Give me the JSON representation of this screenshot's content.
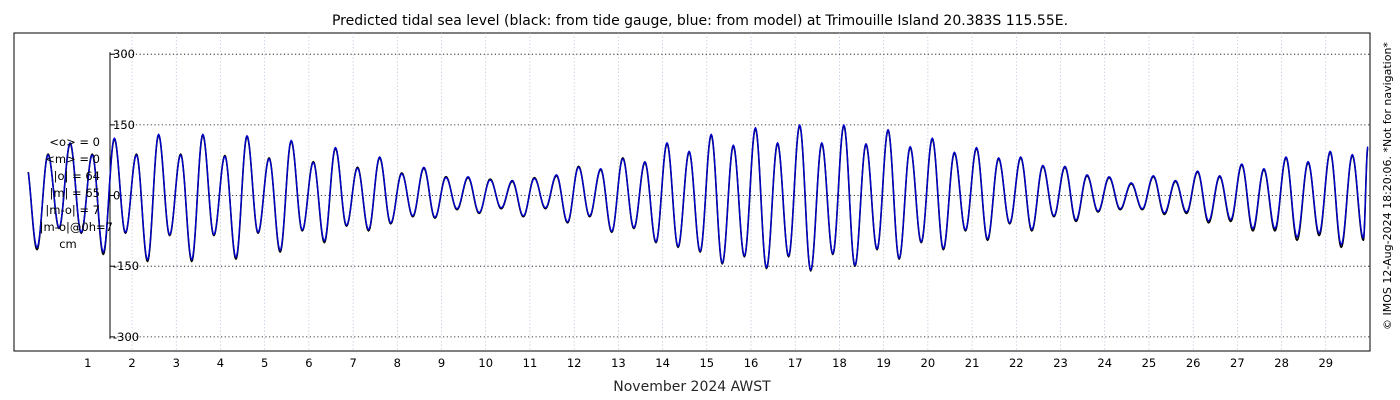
{
  "chart_data": {
    "type": "line",
    "title": "Predicted tidal sea level (black: from tide gauge, blue: from model) at Trimouille Island 20.383S 115.55E.",
    "xlabel": "November 2024 AWST",
    "ylabel": "",
    "unit": "cm",
    "ylim": [
      -330,
      345
    ],
    "yticks": [
      300,
      150,
      0,
      -150,
      -300
    ],
    "ytick_labels": [
      "300",
      "150",
      "0",
      "-150",
      "-300"
    ],
    "xlim": [
      -0.67,
      30
    ],
    "xticks": [
      1,
      2,
      3,
      4,
      5,
      6,
      7,
      8,
      9,
      10,
      11,
      12,
      13,
      14,
      15,
      16,
      17,
      18,
      19,
      20,
      21,
      22,
      23,
      24,
      25,
      26,
      27,
      28,
      29
    ],
    "xtick_labels": [
      "1",
      "2",
      "3",
      "4",
      "5",
      "6",
      "7",
      "8",
      "9",
      "10",
      "11",
      "12",
      "13",
      "14",
      "15",
      "16",
      "17",
      "18",
      "19",
      "20",
      "21",
      "22",
      "23",
      "24",
      "25",
      "26",
      "27",
      "28",
      "29"
    ],
    "grid": true,
    "x_start": -0.35,
    "x_end": 29.95,
    "series": [
      {
        "name": "black: from tide gauge",
        "color": "#000000",
        "high_tide_peaks": [
          [
            -0.4,
            70
          ],
          [
            0.1,
            88
          ],
          [
            0.6,
            110
          ],
          [
            1.1,
            88
          ],
          [
            1.6,
            120
          ],
          [
            2.1,
            88
          ],
          [
            2.6,
            128
          ],
          [
            3.1,
            88
          ],
          [
            3.6,
            128
          ],
          [
            4.1,
            85
          ],
          [
            4.6,
            125
          ],
          [
            5.1,
            80
          ],
          [
            5.6,
            115
          ],
          [
            6.1,
            72
          ],
          [
            6.6,
            100
          ],
          [
            7.1,
            60
          ],
          [
            7.6,
            80
          ],
          [
            8.1,
            48
          ],
          [
            8.6,
            58
          ],
          [
            9.1,
            40
          ],
          [
            9.6,
            38
          ],
          [
            10.1,
            35
          ],
          [
            10.6,
            30
          ],
          [
            11.1,
            38
          ],
          [
            11.6,
            42
          ],
          [
            12.1,
            62
          ],
          [
            12.6,
            55
          ],
          [
            13.1,
            80
          ],
          [
            13.6,
            70
          ],
          [
            14.1,
            110
          ],
          [
            14.6,
            92
          ],
          [
            15.1,
            128
          ],
          [
            15.6,
            105
          ],
          [
            16.1,
            142
          ],
          [
            16.6,
            110
          ],
          [
            17.1,
            148
          ],
          [
            17.6,
            110
          ],
          [
            18.1,
            148
          ],
          [
            18.6,
            108
          ],
          [
            19.1,
            138
          ],
          [
            19.6,
            102
          ],
          [
            20.1,
            120
          ],
          [
            20.6,
            90
          ],
          [
            21.1,
            100
          ],
          [
            21.6,
            78
          ],
          [
            22.1,
            80
          ],
          [
            22.6,
            62
          ],
          [
            23.1,
            60
          ],
          [
            23.6,
            42
          ],
          [
            24.1,
            38
          ],
          [
            24.6,
            25
          ],
          [
            25.1,
            40
          ],
          [
            25.6,
            30
          ],
          [
            26.1,
            50
          ],
          [
            26.6,
            40
          ],
          [
            27.1,
            65
          ],
          [
            27.6,
            55
          ],
          [
            28.1,
            80
          ],
          [
            28.6,
            70
          ],
          [
            29.1,
            92
          ],
          [
            29.6,
            85
          ],
          [
            29.95,
            100
          ]
        ],
        "low_tide_troughs": [
          [
            -0.15,
            -115
          ],
          [
            0.35,
            -70
          ],
          [
            0.85,
            -80
          ],
          [
            1.35,
            -125
          ],
          [
            1.85,
            -80
          ],
          [
            2.35,
            -140
          ],
          [
            2.85,
            -85
          ],
          [
            3.35,
            -140
          ],
          [
            3.85,
            -85
          ],
          [
            4.35,
            -135
          ],
          [
            4.85,
            -80
          ],
          [
            5.35,
            -120
          ],
          [
            5.85,
            -75
          ],
          [
            6.35,
            -100
          ],
          [
            6.85,
            -65
          ],
          [
            7.35,
            -75
          ],
          [
            7.85,
            -60
          ],
          [
            8.35,
            -45
          ],
          [
            8.85,
            -48
          ],
          [
            9.35,
            -30
          ],
          [
            9.85,
            -38
          ],
          [
            10.35,
            -28
          ],
          [
            10.85,
            -45
          ],
          [
            11.35,
            -28
          ],
          [
            11.85,
            -58
          ],
          [
            12.35,
            -45
          ],
          [
            12.85,
            -78
          ],
          [
            13.35,
            -70
          ],
          [
            13.85,
            -100
          ],
          [
            14.35,
            -110
          ],
          [
            14.85,
            -120
          ],
          [
            15.35,
            -145
          ],
          [
            15.85,
            -130
          ],
          [
            16.35,
            -155
          ],
          [
            16.85,
            -130
          ],
          [
            17.35,
            -160
          ],
          [
            17.85,
            -125
          ],
          [
            18.35,
            -150
          ],
          [
            18.85,
            -115
          ],
          [
            19.35,
            -135
          ],
          [
            19.85,
            -100
          ],
          [
            20.35,
            -115
          ],
          [
            20.85,
            -75
          ],
          [
            21.35,
            -95
          ],
          [
            21.85,
            -60
          ],
          [
            22.35,
            -75
          ],
          [
            22.85,
            -45
          ],
          [
            23.35,
            -55
          ],
          [
            23.85,
            -35
          ],
          [
            24.35,
            -30
          ],
          [
            24.85,
            -30
          ],
          [
            25.35,
            -40
          ],
          [
            25.85,
            -38
          ],
          [
            26.35,
            -58
          ],
          [
            26.85,
            -55
          ],
          [
            27.35,
            -75
          ],
          [
            27.85,
            -75
          ],
          [
            28.35,
            -95
          ],
          [
            28.85,
            -85
          ],
          [
            29.35,
            -110
          ],
          [
            29.85,
            -95
          ]
        ]
      },
      {
        "name": "blue: from model",
        "color": "#0000cc",
        "high_tide_peaks": [
          [
            -0.4,
            68
          ],
          [
            0.1,
            86
          ],
          [
            0.6,
            112
          ],
          [
            1.1,
            86
          ],
          [
            1.6,
            122
          ],
          [
            2.1,
            86
          ],
          [
            2.6,
            130
          ],
          [
            3.1,
            86
          ],
          [
            3.6,
            130
          ],
          [
            4.1,
            83
          ],
          [
            4.6,
            127
          ],
          [
            5.1,
            78
          ],
          [
            5.6,
            117
          ],
          [
            6.1,
            70
          ],
          [
            6.6,
            102
          ],
          [
            7.1,
            58
          ],
          [
            7.6,
            82
          ],
          [
            8.1,
            46
          ],
          [
            8.6,
            60
          ],
          [
            9.1,
            38
          ],
          [
            9.6,
            40
          ],
          [
            10.1,
            33
          ],
          [
            10.6,
            32
          ],
          [
            11.1,
            36
          ],
          [
            11.6,
            44
          ],
          [
            12.1,
            60
          ],
          [
            12.6,
            57
          ],
          [
            13.1,
            78
          ],
          [
            13.6,
            72
          ],
          [
            14.1,
            112
          ],
          [
            14.6,
            94
          ],
          [
            15.1,
            130
          ],
          [
            15.6,
            107
          ],
          [
            16.1,
            144
          ],
          [
            16.6,
            112
          ],
          [
            17.1,
            150
          ],
          [
            17.6,
            112
          ],
          [
            18.1,
            150
          ],
          [
            18.6,
            110
          ],
          [
            19.1,
            140
          ],
          [
            19.6,
            104
          ],
          [
            20.1,
            122
          ],
          [
            20.6,
            92
          ],
          [
            21.1,
            102
          ],
          [
            21.6,
            80
          ],
          [
            22.1,
            82
          ],
          [
            22.6,
            64
          ],
          [
            23.1,
            62
          ],
          [
            23.6,
            44
          ],
          [
            24.1,
            40
          ],
          [
            24.6,
            27
          ],
          [
            25.1,
            42
          ],
          [
            25.6,
            32
          ],
          [
            26.1,
            52
          ],
          [
            26.6,
            42
          ],
          [
            27.1,
            67
          ],
          [
            27.6,
            57
          ],
          [
            28.1,
            82
          ],
          [
            28.6,
            72
          ],
          [
            29.1,
            94
          ],
          [
            29.6,
            87
          ],
          [
            29.95,
            104
          ]
        ],
        "low_tide_troughs": [
          [
            -0.15,
            -110
          ],
          [
            0.35,
            -68
          ],
          [
            0.85,
            -78
          ],
          [
            1.35,
            -120
          ],
          [
            1.85,
            -78
          ],
          [
            2.35,
            -136
          ],
          [
            2.85,
            -83
          ],
          [
            3.35,
            -136
          ],
          [
            3.85,
            -83
          ],
          [
            4.35,
            -131
          ],
          [
            4.85,
            -78
          ],
          [
            5.35,
            -116
          ],
          [
            5.85,
            -73
          ],
          [
            6.35,
            -96
          ],
          [
            6.85,
            -63
          ],
          [
            7.35,
            -72
          ],
          [
            7.85,
            -58
          ],
          [
            8.35,
            -43
          ],
          [
            8.85,
            -46
          ],
          [
            9.35,
            -28
          ],
          [
            9.85,
            -36
          ],
          [
            10.35,
            -26
          ],
          [
            10.85,
            -43
          ],
          [
            11.35,
            -26
          ],
          [
            11.85,
            -56
          ],
          [
            12.35,
            -43
          ],
          [
            12.85,
            -76
          ],
          [
            13.35,
            -68
          ],
          [
            13.85,
            -98
          ],
          [
            14.35,
            -108
          ],
          [
            14.85,
            -118
          ],
          [
            15.35,
            -143
          ],
          [
            15.85,
            -128
          ],
          [
            16.35,
            -153
          ],
          [
            16.85,
            -128
          ],
          [
            17.35,
            -158
          ],
          [
            17.85,
            -123
          ],
          [
            18.35,
            -148
          ],
          [
            18.85,
            -113
          ],
          [
            19.35,
            -133
          ],
          [
            19.85,
            -98
          ],
          [
            20.35,
            -112
          ],
          [
            20.85,
            -73
          ],
          [
            21.35,
            -92
          ],
          [
            21.85,
            -58
          ],
          [
            22.35,
            -72
          ],
          [
            22.85,
            -43
          ],
          [
            23.35,
            -52
          ],
          [
            23.85,
            -33
          ],
          [
            24.35,
            -28
          ],
          [
            24.85,
            -28
          ],
          [
            25.35,
            -37
          ],
          [
            25.85,
            -35
          ],
          [
            26.35,
            -54
          ],
          [
            26.85,
            -51
          ],
          [
            27.35,
            -70
          ],
          [
            27.85,
            -70
          ],
          [
            28.35,
            -88
          ],
          [
            28.85,
            -80
          ],
          [
            29.35,
            -104
          ],
          [
            29.85,
            -90
          ]
        ]
      }
    ],
    "stats_box": [
      "<o> = 0",
      "<m> = 0",
      "|o| = 64",
      "|m| = 65",
      "|m-o| = 7",
      "|m-o|@0h=7",
      "cm"
    ],
    "copyright": "© IMOS 12-Aug-2024 18:20:06. *Not for navigation*"
  }
}
